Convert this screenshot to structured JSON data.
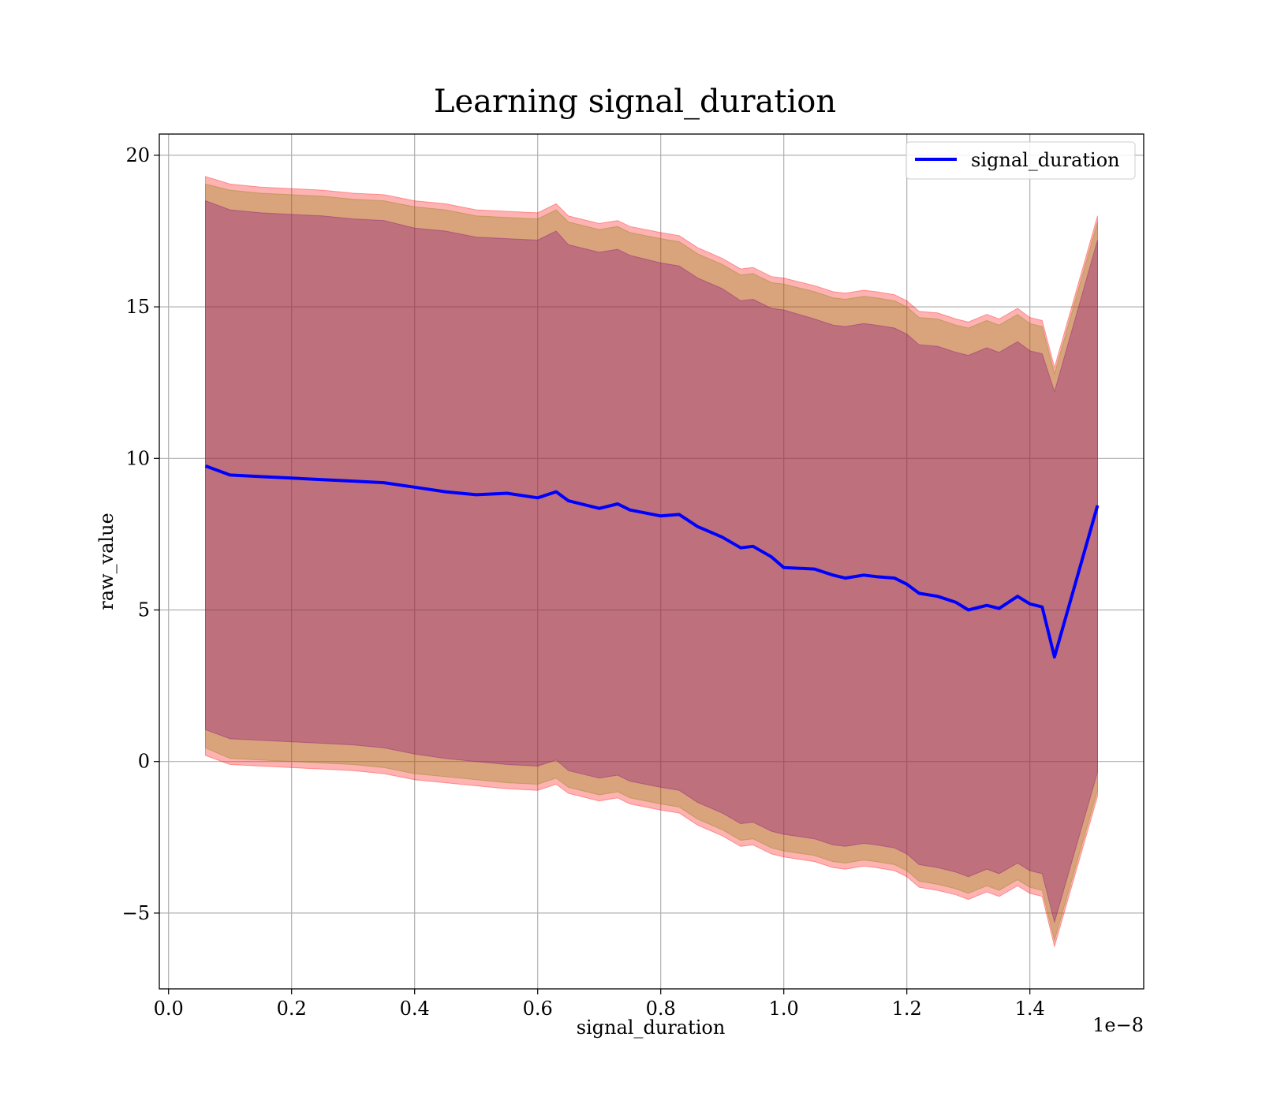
{
  "chart_data": {
    "type": "area",
    "title": "Learning signal_duration",
    "xlabel": "signal_duration",
    "ylabel": "raw_value",
    "x_offset_text": "1e−8",
    "xlim": [
      -0.015,
      1.585
    ],
    "ylim": [
      -7.5,
      20.7
    ],
    "x_ticks": [
      0.0,
      0.2,
      0.4,
      0.6,
      0.8,
      1.0,
      1.2,
      1.4
    ],
    "x_tick_labels": [
      "0.0",
      "0.2",
      "0.4",
      "0.6",
      "0.8",
      "1.0",
      "1.2",
      "1.4"
    ],
    "y_ticks": [
      -5,
      0,
      5,
      10,
      15,
      20
    ],
    "y_tick_labels": [
      "−5",
      "0",
      "5",
      "10",
      "15",
      "20"
    ],
    "grid": true,
    "legend_position": "top-right",
    "x": [
      0.06,
      0.1,
      0.15,
      0.2,
      0.25,
      0.3,
      0.35,
      0.4,
      0.45,
      0.5,
      0.55,
      0.6,
      0.63,
      0.65,
      0.7,
      0.73,
      0.75,
      0.8,
      0.83,
      0.86,
      0.9,
      0.93,
      0.95,
      0.98,
      1.0,
      1.05,
      1.08,
      1.1,
      1.13,
      1.15,
      1.18,
      1.2,
      1.22,
      1.25,
      1.28,
      1.3,
      1.33,
      1.35,
      1.38,
      1.4,
      1.42,
      1.44,
      1.51
    ],
    "series": [
      {
        "name": "signal_duration",
        "color": "#0000ff",
        "values": [
          9.75,
          9.45,
          9.4,
          9.35,
          9.3,
          9.25,
          9.2,
          9.05,
          8.9,
          8.8,
          8.85,
          8.7,
          8.9,
          8.6,
          8.35,
          8.5,
          8.3,
          8.1,
          8.15,
          7.75,
          7.4,
          7.05,
          7.1,
          6.75,
          6.4,
          6.35,
          6.15,
          6.05,
          6.15,
          6.1,
          6.05,
          5.85,
          5.55,
          5.45,
          5.25,
          5.0,
          5.15,
          5.05,
          5.45,
          5.2,
          5.1,
          3.45,
          8.45
        ]
      }
    ],
    "bands": [
      {
        "color": "#ff0000",
        "opacity": 0.3,
        "upper": [
          19.3,
          19.05,
          18.95,
          18.9,
          18.85,
          18.75,
          18.7,
          18.5,
          18.4,
          18.2,
          18.15,
          18.1,
          18.4,
          18.0,
          17.75,
          17.85,
          17.65,
          17.45,
          17.35,
          16.95,
          16.6,
          16.25,
          16.3,
          16.0,
          15.95,
          15.7,
          15.5,
          15.45,
          15.55,
          15.5,
          15.4,
          15.2,
          14.85,
          14.8,
          14.6,
          14.5,
          14.75,
          14.6,
          14.95,
          14.65,
          14.55,
          13.0,
          18.0
        ],
        "lower": [
          0.2,
          -0.1,
          -0.15,
          -0.2,
          -0.25,
          -0.3,
          -0.4,
          -0.6,
          -0.7,
          -0.8,
          -0.9,
          -0.95,
          -0.75,
          -1.05,
          -1.3,
          -1.2,
          -1.4,
          -1.6,
          -1.7,
          -2.1,
          -2.45,
          -2.8,
          -2.75,
          -3.05,
          -3.15,
          -3.3,
          -3.5,
          -3.55,
          -3.45,
          -3.5,
          -3.6,
          -3.8,
          -4.15,
          -4.25,
          -4.4,
          -4.55,
          -4.3,
          -4.45,
          -4.1,
          -4.35,
          -4.45,
          -6.1,
          -1.15
        ]
      },
      {
        "color": "#808000",
        "opacity": 0.3,
        "upper": [
          19.05,
          18.85,
          18.75,
          18.7,
          18.65,
          18.55,
          18.5,
          18.3,
          18.2,
          18.0,
          17.95,
          17.9,
          18.2,
          17.8,
          17.55,
          17.65,
          17.45,
          17.25,
          17.15,
          16.75,
          16.4,
          16.05,
          16.1,
          15.8,
          15.75,
          15.5,
          15.3,
          15.25,
          15.35,
          15.3,
          15.2,
          15.0,
          14.65,
          14.6,
          14.4,
          14.3,
          14.55,
          14.4,
          14.75,
          14.45,
          14.35,
          12.8,
          17.8
        ],
        "lower": [
          0.45,
          0.1,
          0.05,
          0.0,
          -0.05,
          -0.1,
          -0.2,
          -0.4,
          -0.5,
          -0.6,
          -0.7,
          -0.75,
          -0.55,
          -0.85,
          -1.1,
          -1.0,
          -1.2,
          -1.4,
          -1.5,
          -1.9,
          -2.25,
          -2.6,
          -2.55,
          -2.85,
          -2.95,
          -3.1,
          -3.3,
          -3.35,
          -3.25,
          -3.3,
          -3.4,
          -3.6,
          -3.95,
          -4.05,
          -4.2,
          -4.35,
          -4.1,
          -4.25,
          -3.9,
          -4.15,
          -4.25,
          -5.9,
          -0.95
        ]
      },
      {
        "color": "#800080",
        "opacity": 0.3,
        "upper": [
          18.5,
          18.2,
          18.1,
          18.05,
          18.0,
          17.9,
          17.85,
          17.6,
          17.5,
          17.3,
          17.25,
          17.2,
          17.5,
          17.05,
          16.8,
          16.9,
          16.7,
          16.45,
          16.35,
          15.95,
          15.6,
          15.2,
          15.25,
          14.95,
          14.9,
          14.6,
          14.4,
          14.35,
          14.45,
          14.4,
          14.3,
          14.1,
          13.75,
          13.7,
          13.5,
          13.4,
          13.65,
          13.5,
          13.85,
          13.55,
          13.45,
          12.2,
          17.2
        ],
        "lower": [
          1.05,
          0.75,
          0.7,
          0.65,
          0.6,
          0.55,
          0.45,
          0.25,
          0.1,
          0.0,
          -0.1,
          -0.15,
          0.05,
          -0.3,
          -0.55,
          -0.45,
          -0.65,
          -0.85,
          -0.95,
          -1.35,
          -1.7,
          -2.05,
          -2.0,
          -2.3,
          -2.4,
          -2.55,
          -2.75,
          -2.8,
          -2.7,
          -2.75,
          -2.85,
          -3.05,
          -3.4,
          -3.5,
          -3.65,
          -3.8,
          -3.55,
          -3.7,
          -3.35,
          -3.6,
          -3.7,
          -5.3,
          -0.35
        ]
      }
    ]
  }
}
